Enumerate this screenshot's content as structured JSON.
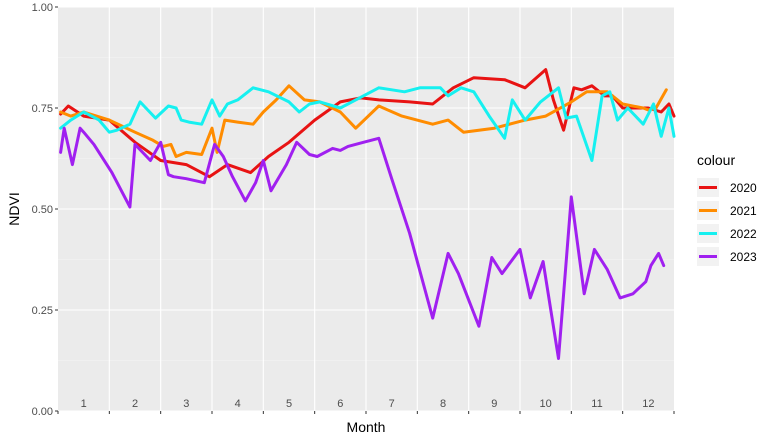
{
  "chart_data": {
    "type": "line",
    "xlabel": "Month",
    "ylabel": "NDVI",
    "xlim": [
      0.5,
      12.5
    ],
    "ylim": [
      0,
      1
    ],
    "x_ticks": [
      1,
      2,
      3,
      4,
      5,
      6,
      7,
      8,
      9,
      10,
      11,
      12
    ],
    "x_tick_labels": [
      "1",
      "2",
      "3",
      "4",
      "5",
      "6",
      "7",
      "8",
      "9",
      "10",
      "11",
      "12"
    ],
    "y_ticks": [
      0,
      0.25,
      0.5,
      0.75,
      1
    ],
    "y_tick_labels": [
      "0.00",
      "0.25",
      "0.50",
      "0.75",
      "1.00"
    ],
    "grid": true,
    "legend": {
      "title": "colour",
      "position": "right"
    },
    "series": [
      {
        "name": "2020",
        "color": "#e81313",
        "x": [
          0.55,
          0.7,
          1.0,
          1.5,
          2.0,
          2.5,
          3.0,
          3.45,
          3.8,
          4.25,
          4.6,
          5.0,
          5.5,
          6.0,
          6.4,
          6.75,
          7.35,
          7.8,
          8.2,
          8.6,
          9.2,
          9.6,
          10.0,
          10.15,
          10.35,
          10.55,
          10.7,
          10.9,
          11.15,
          11.3,
          11.5,
          11.75,
          12.0,
          12.25,
          12.4,
          12.5
        ],
        "y": [
          0.735,
          0.755,
          0.73,
          0.72,
          0.665,
          0.62,
          0.61,
          0.58,
          0.61,
          0.59,
          0.63,
          0.665,
          0.72,
          0.765,
          0.775,
          0.77,
          0.765,
          0.76,
          0.8,
          0.825,
          0.82,
          0.8,
          0.845,
          0.77,
          0.695,
          0.8,
          0.795,
          0.805,
          0.78,
          0.78,
          0.75,
          0.75,
          0.75,
          0.74,
          0.76,
          0.73
        ]
      },
      {
        "name": "2021",
        "color": "#ff8c00",
        "x": [
          0.55,
          0.75,
          1.0,
          1.5,
          2.0,
          2.35,
          2.55,
          2.7,
          2.8,
          3.0,
          3.3,
          3.5,
          3.6,
          3.75,
          4.0,
          4.3,
          4.5,
          4.75,
          5.0,
          5.3,
          5.6,
          6.0,
          6.3,
          6.75,
          7.2,
          7.8,
          8.1,
          8.4,
          9.0,
          9.6,
          10.0,
          10.5,
          10.8,
          11.2,
          11.5,
          11.9,
          12.0,
          12.15,
          12.35
        ],
        "y": [
          0.74,
          0.73,
          0.74,
          0.72,
          0.69,
          0.67,
          0.655,
          0.66,
          0.63,
          0.64,
          0.635,
          0.7,
          0.64,
          0.72,
          0.715,
          0.71,
          0.74,
          0.77,
          0.805,
          0.77,
          0.765,
          0.74,
          0.7,
          0.755,
          0.73,
          0.71,
          0.72,
          0.69,
          0.7,
          0.72,
          0.73,
          0.765,
          0.79,
          0.79,
          0.76,
          0.75,
          0.745,
          0.75,
          0.795
        ]
      },
      {
        "name": "2022",
        "color": "#16f0f0",
        "x": [
          0.55,
          0.75,
          1.0,
          1.3,
          1.5,
          1.65,
          1.9,
          2.1,
          2.4,
          2.65,
          2.8,
          2.9,
          3.05,
          3.3,
          3.5,
          3.65,
          3.8,
          4.0,
          4.3,
          4.6,
          5.0,
          5.2,
          5.4,
          5.6,
          6.0,
          6.3,
          6.75,
          7.25,
          7.55,
          7.95,
          8.1,
          8.35,
          8.6,
          8.9,
          9.2,
          9.35,
          9.6,
          9.9,
          10.25,
          10.4,
          10.6,
          10.9,
          11.1,
          11.25,
          11.4,
          11.6,
          11.9,
          12.1,
          12.25,
          12.4,
          12.5
        ],
        "y": [
          0.7,
          0.72,
          0.74,
          0.72,
          0.69,
          0.695,
          0.71,
          0.765,
          0.725,
          0.755,
          0.75,
          0.72,
          0.715,
          0.71,
          0.77,
          0.73,
          0.76,
          0.77,
          0.8,
          0.79,
          0.765,
          0.74,
          0.76,
          0.765,
          0.75,
          0.77,
          0.8,
          0.79,
          0.8,
          0.8,
          0.78,
          0.8,
          0.79,
          0.73,
          0.675,
          0.77,
          0.72,
          0.765,
          0.8,
          0.725,
          0.73,
          0.62,
          0.78,
          0.79,
          0.72,
          0.75,
          0.71,
          0.76,
          0.68,
          0.75,
          0.68
        ]
      },
      {
        "name": "2023",
        "color": "#a020f0",
        "x": [
          0.55,
          0.62,
          0.78,
          0.93,
          1.0,
          1.2,
          1.55,
          1.9,
          2.0,
          2.3,
          2.5,
          2.65,
          2.75,
          3.0,
          3.35,
          3.55,
          3.72,
          3.9,
          4.15,
          4.35,
          4.5,
          4.65,
          4.95,
          5.15,
          5.4,
          5.55,
          5.85,
          6.0,
          6.15,
          6.45,
          6.75,
          7.0,
          7.35,
          7.8,
          8.1,
          8.3,
          8.7,
          8.95,
          9.15,
          9.5,
          9.7,
          9.95,
          10.25,
          10.5,
          10.75,
          10.95,
          11.2,
          11.45,
          11.7,
          11.95,
          12.05,
          12.2,
          12.3
        ],
        "y": [
          0.64,
          0.7,
          0.61,
          0.7,
          0.69,
          0.66,
          0.59,
          0.505,
          0.66,
          0.62,
          0.665,
          0.585,
          0.58,
          0.575,
          0.565,
          0.66,
          0.63,
          0.58,
          0.52,
          0.565,
          0.62,
          0.545,
          0.61,
          0.665,
          0.635,
          0.63,
          0.65,
          0.645,
          0.655,
          0.665,
          0.675,
          0.575,
          0.44,
          0.23,
          0.39,
          0.34,
          0.21,
          0.38,
          0.34,
          0.4,
          0.28,
          0.37,
          0.13,
          0.53,
          0.29,
          0.4,
          0.35,
          0.28,
          0.29,
          0.32,
          0.36,
          0.39,
          0.36
        ]
      }
    ]
  }
}
